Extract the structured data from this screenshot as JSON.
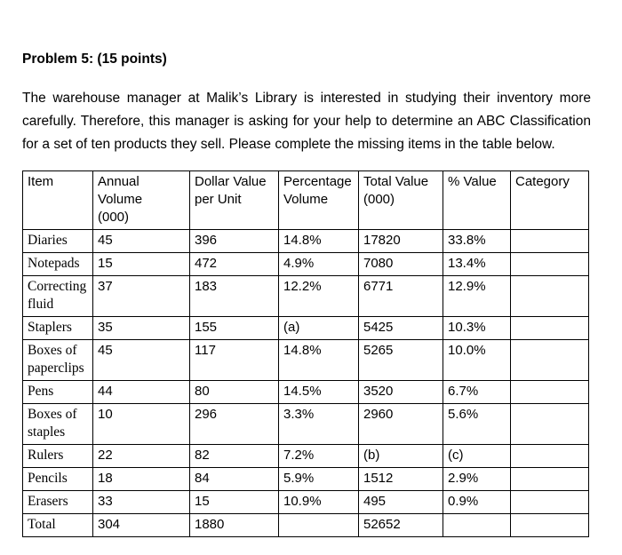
{
  "title": "Problem 5: (15 points)",
  "paragraph": "The warehouse manager at Malik’s Library is interested in studying their inventory more carefully. Therefore, this manager is asking for your help to determine an ABC Classification for a set of ten products they sell. Please complete the missing items in the table below.",
  "table": {
    "headers": [
      "Item",
      "Annual\nVolume\n(000)",
      "Dollar Value\nper Unit",
      "Percentage\nVolume",
      "Total Value\n(000)",
      "% Value",
      "Category"
    ],
    "rows": [
      [
        "Diaries",
        "45",
        "396",
        "14.8%",
        "17820",
        "33.8%",
        ""
      ],
      [
        "Notepads",
        "15",
        "472",
        "4.9%",
        "7080",
        "13.4%",
        ""
      ],
      [
        "Correcting fluid",
        "37",
        "183",
        "12.2%",
        "6771",
        "12.9%",
        ""
      ],
      [
        "Staplers",
        "35",
        "155",
        "(a)",
        "5425",
        "10.3%",
        ""
      ],
      [
        "Boxes of paperclips",
        "45",
        "117",
        "14.8%",
        "5265",
        "10.0%",
        ""
      ],
      [
        "Pens",
        "44",
        "80",
        "14.5%",
        "3520",
        "6.7%",
        ""
      ],
      [
        "Boxes of staples",
        "10",
        "296",
        "3.3%",
        "2960",
        "5.6%",
        ""
      ],
      [
        "Rulers",
        "22",
        "82",
        "7.2%",
        "(b)",
        "(c)",
        ""
      ],
      [
        "Pencils",
        "18",
        "84",
        "5.9%",
        "1512",
        "2.9%",
        ""
      ],
      [
        "Erasers",
        "33",
        "15",
        "10.9%",
        "495",
        "0.9%",
        ""
      ],
      [
        "Total",
        "304",
        "1880",
        "",
        "52652",
        "",
        ""
      ]
    ]
  }
}
